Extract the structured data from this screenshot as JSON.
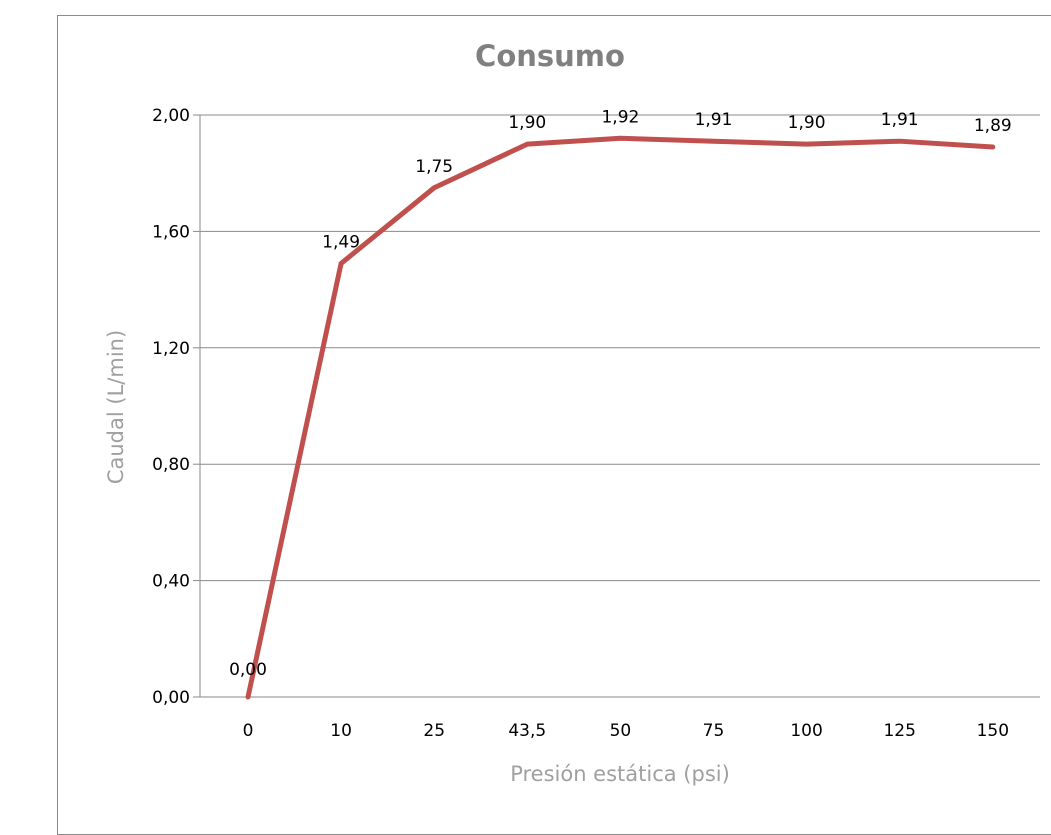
{
  "chart_data": {
    "type": "line",
    "title": "Consumo",
    "xlabel": "Presión estática (psi)",
    "ylabel": "Caudal (L/min)",
    "categories": [
      "0",
      "10",
      "25",
      "43,5",
      "50",
      "75",
      "100",
      "125",
      "150"
    ],
    "series": [
      {
        "values": [
          0.0,
          1.49,
          1.75,
          1.9,
          1.92,
          1.91,
          1.9,
          1.91,
          1.89
        ],
        "data_labels": [
          "0,00",
          "1,49",
          "1,75",
          "1,90",
          "1,92",
          "1,91",
          "1,90",
          "1,91",
          "1,89"
        ],
        "color": "#c0504d"
      }
    ],
    "ylim": [
      0,
      2
    ],
    "y_ticks": [
      0,
      0.4,
      0.8,
      1.2,
      1.6,
      2.0
    ],
    "y_tick_labels": [
      "0,00",
      "0,40",
      "0,80",
      "1,20",
      "1,60",
      "2,00"
    ],
    "grid": true,
    "legend": "none"
  }
}
